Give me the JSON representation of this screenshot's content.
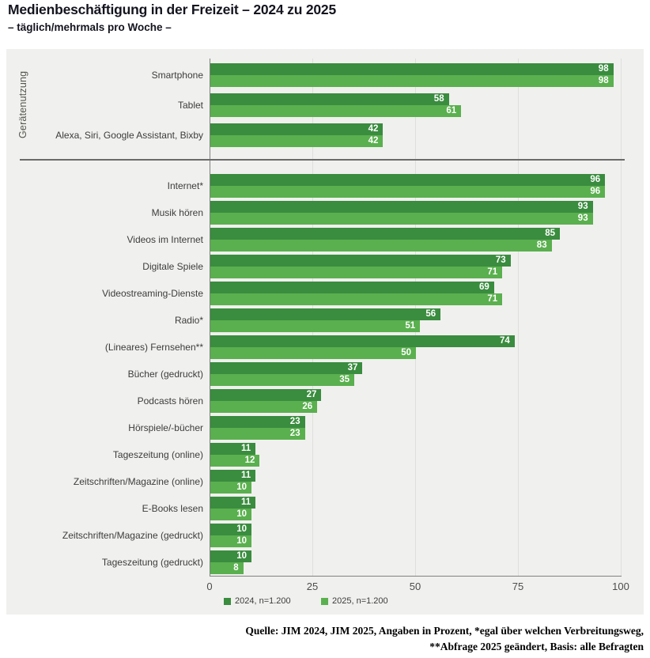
{
  "title": "Medienbeschäftigung in der Freizeit – 2024 zu 2025",
  "subtitle": "– täglich/mehrmals pro Woche –",
  "footnotes": {
    "line1": "Quelle: JIM 2024, JIM 2025, Angaben in Prozent, *egal über welchen Verbreitungsweg,",
    "line2": "**Abfrage 2025 geändert, Basis: alle Befragten"
  },
  "colors": {
    "series_2024": "#3a8c3f",
    "series_2025": "#5ab04e",
    "plot_background": "#f0f0ee",
    "grid": "#dededc",
    "axis": "#818181",
    "title_text": "#14141f",
    "label_text": "#3c3c3c"
  },
  "chart_data": {
    "type": "bar",
    "orientation": "horizontal",
    "title": "Medienbeschäftigung in der Freizeit – 2024 zu 2025",
    "subtitle": "– täglich/mehrmals pro Woche –",
    "unit": "Prozent",
    "xlim": [
      0,
      100
    ],
    "xticks": [
      "0",
      "25",
      "50",
      "75",
      "100"
    ],
    "legend_position": "bottom",
    "grid": true,
    "section_label": "Gerätenutzung",
    "section_split_after_index": 2,
    "categories": [
      "Smartphone",
      "Tablet",
      "Alexa, Siri, Google Assistant, Bixby",
      "Internet*",
      "Musik hören",
      "Videos im Internet",
      "Digitale Spiele",
      "Videostreaming-Dienste",
      "Radio*",
      "(Lineares) Fernsehen**",
      "Bücher (gedruckt)",
      "Podcasts hören",
      "Hörspiele/-bücher",
      "Tageszeitung (online)",
      "Zeitschriften/Magazine (online)",
      "E-Books lesen",
      "Zeitschriften/Magazine (gedruckt)",
      "Tageszeitung (gedruckt)"
    ],
    "series": [
      {
        "name": "2024, n=1.200",
        "color": "#3a8c3f",
        "values": [
          98,
          58,
          42,
          96,
          93,
          85,
          73,
          69,
          56,
          74,
          37,
          27,
          23,
          11,
          11,
          11,
          10,
          10
        ]
      },
      {
        "name": "2025, n=1.200",
        "color": "#5ab04e",
        "values": [
          98,
          61,
          42,
          96,
          93,
          83,
          71,
          71,
          51,
          50,
          35,
          26,
          23,
          12,
          10,
          10,
          10,
          8
        ]
      }
    ]
  }
}
